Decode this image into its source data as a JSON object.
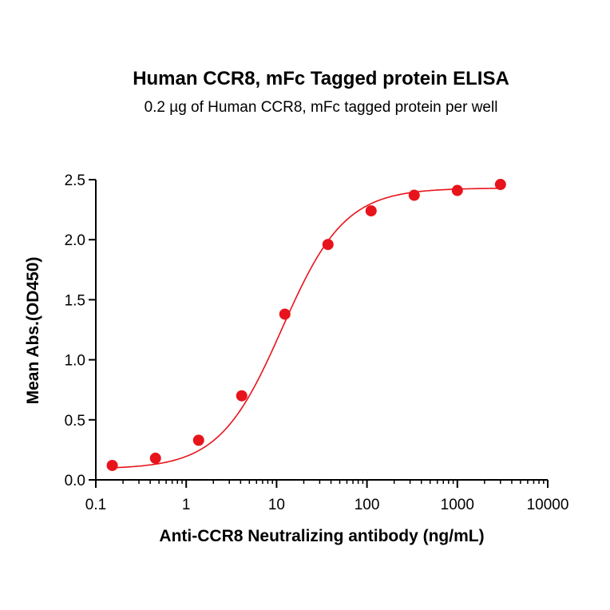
{
  "chart_data": {
    "type": "scatter",
    "title": "Human CCR8, mFc Tagged protein ELISA",
    "subtitle": "0.2 µg of Human CCR8, mFc tagged protein per well",
    "xlabel": "Anti-CCR8 Neutralizing antibody (ng/mL)",
    "ylabel": "Mean Abs.(OD450)",
    "x_scale": "log",
    "xlim": [
      0.1,
      10000
    ],
    "ylim": [
      0.0,
      2.5
    ],
    "x_ticks": [
      0.1,
      1,
      10,
      100,
      1000,
      10000
    ],
    "x_tick_labels": [
      "0.1",
      "1",
      "10",
      "100",
      "1000",
      "10000"
    ],
    "y_ticks": [
      0.0,
      0.5,
      1.0,
      1.5,
      2.0,
      2.5
    ],
    "y_tick_labels": [
      "0.0",
      "0.5",
      "1.0",
      "1.5",
      "2.0",
      "2.5"
    ],
    "grid": false,
    "legend": "none",
    "color": "#e8141b",
    "series": [
      {
        "x": [
          0.152,
          0.457,
          1.372,
          4.115,
          12.35,
          37.04,
          111.1,
          333.3,
          1000,
          3000
        ],
        "y": [
          0.12,
          0.18,
          0.33,
          0.7,
          1.38,
          1.96,
          2.24,
          2.37,
          2.41,
          2.46
        ],
        "fit": {
          "model": "4PL",
          "bottom": 0.09,
          "top": 2.43,
          "ec50": 11.5,
          "hill": 1.25
        }
      }
    ]
  }
}
